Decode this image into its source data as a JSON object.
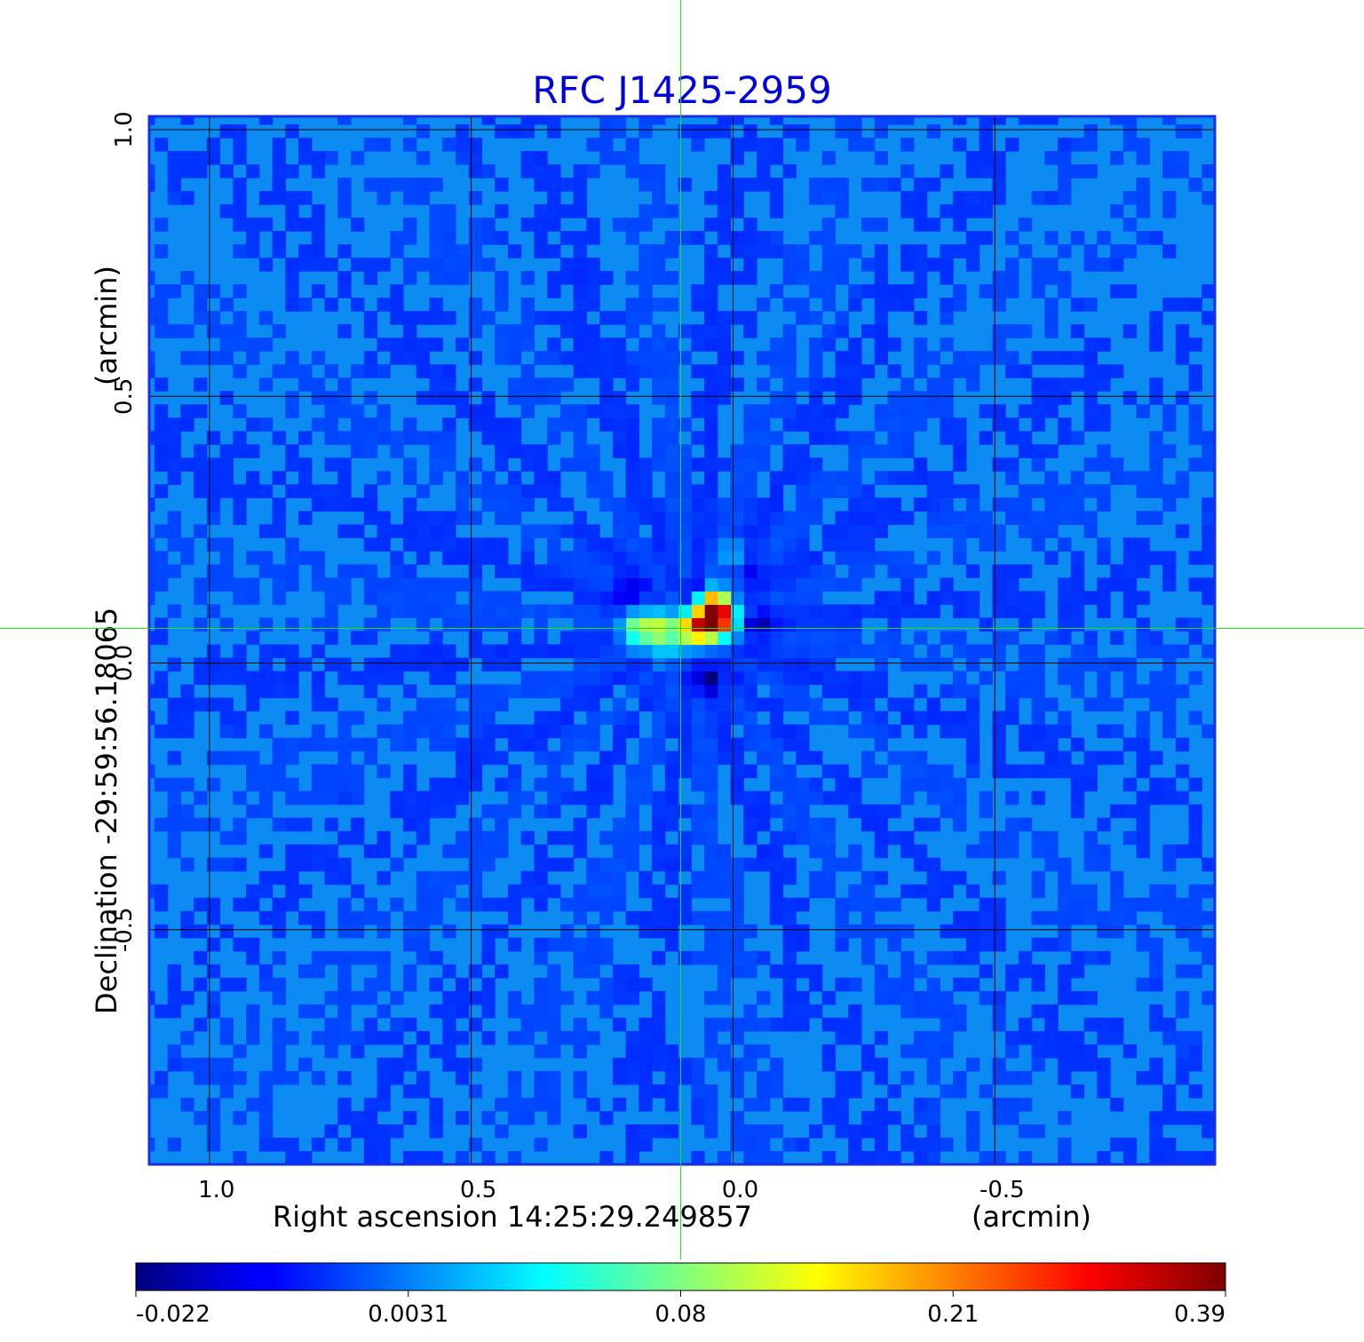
{
  "chart_data": {
    "type": "heatmap",
    "title": "RFC J1425-2959",
    "xlabel": "Right ascension  14:25:29.249857",
    "xunit": "(arcmin)",
    "ylabel": "Declination  -29:59:56.18065",
    "yunit": "(arcmin)",
    "x_ticks": [
      {
        "value": 1.0,
        "label": "1.0"
      },
      {
        "value": 0.5,
        "label": "0.5"
      },
      {
        "value": 0.0,
        "label": "0.0"
      },
      {
        "value": -0.5,
        "label": "-0.5"
      }
    ],
    "y_ticks": [
      {
        "value": 1.0,
        "label": "1.0"
      },
      {
        "value": 0.5,
        "label": "0.5"
      },
      {
        "value": 0.0,
        "label": "0.0"
      },
      {
        "value": -0.5,
        "label": "-0.5"
      }
    ],
    "xlim": [
      1.115,
      -0.92
    ],
    "ylim": [
      -0.94,
      1.025
    ],
    "grid": true,
    "crosshair": {
      "x": 0.1,
      "y": 0.065
    },
    "colormap": "jet",
    "colorbar": {
      "ticks": [
        "-0.022",
        "0.0031",
        "0.08",
        "0.21",
        "0.39"
      ],
      "min": -0.022,
      "max": 0.39
    },
    "background_level": -0.0035,
    "features": [
      {
        "x": 0.03,
        "y": 0.085,
        "value": 0.39
      },
      {
        "x": 0.06,
        "y": 0.07,
        "value": 0.27
      },
      {
        "x": 0.04,
        "y": 0.11,
        "value": 0.19
      },
      {
        "x": 0.09,
        "y": 0.065,
        "value": 0.12
      },
      {
        "x": 0.14,
        "y": 0.065,
        "value": 0.11
      },
      {
        "x": 0.18,
        "y": 0.065,
        "value": 0.1
      },
      {
        "x": 0.13,
        "y": 0.03,
        "value": 0.025
      },
      {
        "x": 0.0,
        "y": 0.2,
        "value": 0.018
      },
      {
        "x": 0.05,
        "y": -0.03,
        "value": -0.022
      },
      {
        "x": 0.07,
        "y": 0.13,
        "value": -0.018
      },
      {
        "x": -0.05,
        "y": 0.075,
        "value": -0.016
      },
      {
        "x": 0.2,
        "y": 0.135,
        "value": -0.015
      },
      {
        "x": -0.03,
        "y": 0.18,
        "value": -0.014
      }
    ]
  }
}
